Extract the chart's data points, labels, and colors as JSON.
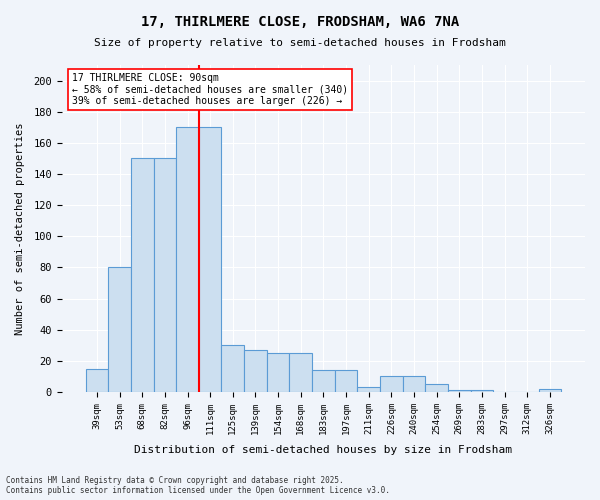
{
  "title1": "17, THIRLMERE CLOSE, FRODSHAM, WA6 7NA",
  "title2": "Size of property relative to semi-detached houses in Frodsham",
  "xlabel": "Distribution of semi-detached houses by size in Frodsham",
  "ylabel": "Number of semi-detached properties",
  "categories": [
    "39sqm",
    "53sqm",
    "68sqm",
    "82sqm",
    "96sqm",
    "111sqm",
    "125sqm",
    "139sqm",
    "154sqm",
    "168sqm",
    "183sqm",
    "197sqm",
    "211sqm",
    "226sqm",
    "240sqm",
    "254sqm",
    "269sqm",
    "283sqm",
    "297sqm",
    "312sqm",
    "326sqm"
  ],
  "values": [
    15,
    80,
    150,
    150,
    170,
    170,
    30,
    27,
    25,
    25,
    14,
    14,
    3,
    10,
    10,
    5,
    1,
    1,
    0,
    0,
    2
  ],
  "bar_color": "#ccdff0",
  "bar_edge_color": "#5b9bd5",
  "vline_x": 4.5,
  "vline_color": "red",
  "annotation_text": "17 THIRLMERE CLOSE: 90sqm\n← 58% of semi-detached houses are smaller (340)\n39% of semi-detached houses are larger (226) →",
  "annotation_box_color": "white",
  "annotation_box_edge": "red",
  "footer": "Contains HM Land Registry data © Crown copyright and database right 2025.\nContains public sector information licensed under the Open Government Licence v3.0.",
  "ylim": [
    0,
    210
  ],
  "yticks": [
    0,
    20,
    40,
    60,
    80,
    100,
    120,
    140,
    160,
    180,
    200
  ],
  "background_color": "#f0f4fa",
  "grid_color": "#ffffff"
}
